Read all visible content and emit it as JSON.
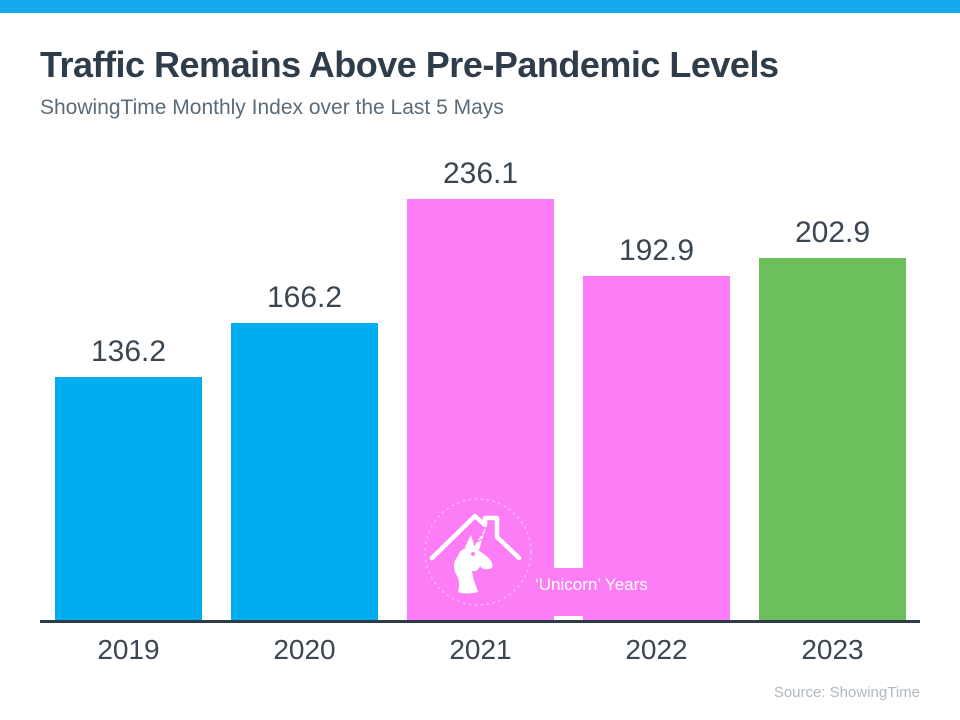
{
  "page": {
    "background": "#FFFFFF",
    "accent_strip_color": "#17A9EC"
  },
  "header": {
    "title": "Traffic Remains Above Pre-Pandemic Levels",
    "subtitle": "ShowingTime Monthly Index over the Last 5 Mays"
  },
  "chart_data": {
    "type": "bar",
    "title": "Traffic Remains Above Pre-Pandemic Levels",
    "subtitle": "ShowingTime Monthly Index over the Last 5 Mays",
    "categories": [
      "2019",
      "2020",
      "2021",
      "2022",
      "2023"
    ],
    "values": [
      136.2,
      166.2,
      236.1,
      192.9,
      202.9
    ],
    "bar_colors": [
      "#00AEEF",
      "#00AEEF",
      "#FC7DF5",
      "#FC7DF5",
      "#6DBF5E"
    ],
    "xlabel": "",
    "ylabel": "",
    "ylim": [
      0,
      260
    ],
    "grid": false,
    "legend": false,
    "value_labels_shown": true,
    "annotation": {
      "label": "‘Unicorn’ Years",
      "icon": "unicorn-house-icon",
      "applies_to": [
        "2021",
        "2022"
      ]
    }
  },
  "colors": {
    "blue_bar": "#00AEEF",
    "pink_bar": "#FC7DF5",
    "green_bar": "#6DBF5E",
    "title_text": "#2F3D4B",
    "subtitle_text": "#5B6C78",
    "label_text": "#3B4651",
    "axis_line": "#2E3A45",
    "source_text": "#AFB9C1"
  },
  "footer": {
    "source": "Source: ShowingTime"
  }
}
